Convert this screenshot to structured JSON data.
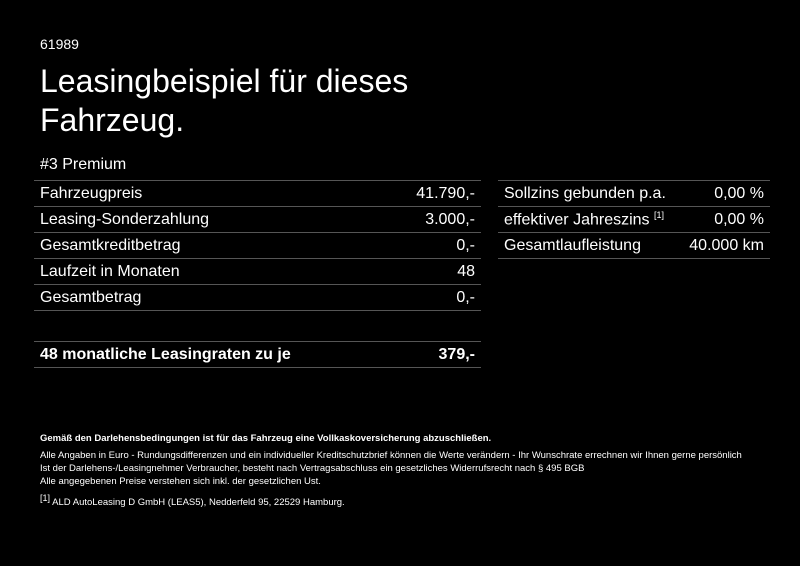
{
  "ref_number": "61989",
  "title": "Leasingbeispiel für dieses Fahrzeug.",
  "variant": "#3 Premium",
  "left_table": [
    {
      "label": "Fahrzeugpreis",
      "value": "41.790,-"
    },
    {
      "label": "Leasing-Sonderzahlung",
      "value": "3.000,-"
    },
    {
      "label": "Gesamtkreditbetrag",
      "value": "0,-"
    },
    {
      "label": "Laufzeit in Monaten",
      "value": "48"
    },
    {
      "label": "Gesamtbetrag",
      "value": "0,-"
    }
  ],
  "right_table": [
    {
      "label": "Sollzins gebunden p.a.",
      "value": "0,00 %"
    },
    {
      "label": "effektiver Jahreszins",
      "sup": "[1]",
      "value": "0,00 %"
    },
    {
      "label": "Gesamtlaufleistung",
      "value": "40.000 km"
    }
  ],
  "total": {
    "label": "48 monatliche Leasingraten zu je",
    "value": "379,-"
  },
  "notes": {
    "bold_line": "Gemäß den Darlehensbedingungen ist für das Fahrzeug eine Vollkaskoversicherung abzuschließen.",
    "line1": "Alle Angaben in Euro - Rundungsdifferenzen und ein individueller Kreditschutzbrief können die Werte verändern - Ihr Wunschrate errechnen wir Ihnen gerne persönlich",
    "line2": "Ist der Darlehens-/Leasingnehmer Verbraucher, besteht nach Vertragsabschluss ein gesetzliches Widerrufsrecht nach § 495 BGB",
    "line3": "Alle angegebenen Preise verstehen sich inkl. der gesetzlichen Ust.",
    "footnote_mark": "[1]",
    "footnote_text": "ALD AutoLeasing D GmbH (LEAS5), Nedderfeld 95, 22529 Hamburg."
  }
}
